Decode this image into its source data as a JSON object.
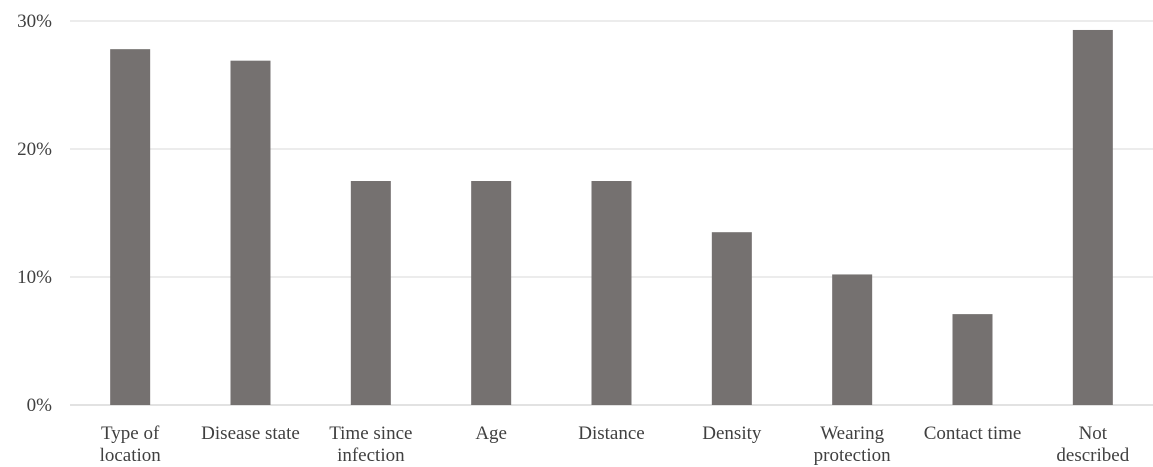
{
  "chart_data": {
    "type": "bar",
    "categories": [
      [
        "Type of",
        "location"
      ],
      [
        "Disease state"
      ],
      [
        "Time since",
        "infection"
      ],
      [
        "Age"
      ],
      [
        "Distance"
      ],
      [
        "Density"
      ],
      [
        "Wearing",
        "protection"
      ],
      [
        "Contact time"
      ],
      [
        "Not",
        "described"
      ]
    ],
    "values": [
      27.8,
      26.9,
      17.5,
      17.5,
      17.5,
      13.5,
      10.2,
      7.1,
      29.3
    ],
    "y_ticks": [
      0,
      10,
      20,
      30
    ],
    "y_tick_labels": [
      "0%",
      "10%",
      "20%",
      "30%"
    ],
    "ylim": [
      0,
      30
    ],
    "grid": true,
    "bar_color": "#757170",
    "grid_color": "#d9d9d9",
    "title": "",
    "xlabel": "",
    "ylabel": ""
  }
}
